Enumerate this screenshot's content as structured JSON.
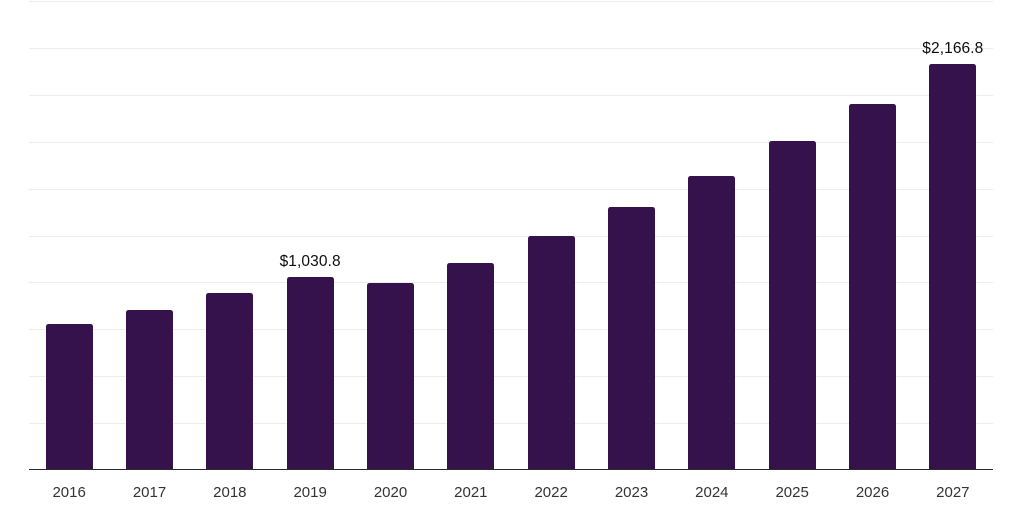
{
  "chart": {
    "background": "#ffffff",
    "bar_color": "#35124B",
    "gridline_color": "#eeecee",
    "axis_line_color": "#2b2b2b",
    "tick_label_color": "#333333",
    "value_label_color": "#0d0d0d"
  },
  "chart_data": {
    "type": "bar",
    "title": "",
    "xlabel": "",
    "ylabel": "",
    "categories": [
      "2016",
      "2017",
      "2018",
      "2019",
      "2020",
      "2021",
      "2022",
      "2023",
      "2024",
      "2025",
      "2026",
      "2027"
    ],
    "values": [
      779.8,
      854.6,
      941.5,
      1030.8,
      998.1,
      1104.9,
      1247.2,
      1403.4,
      1565.4,
      1753.6,
      1952.4,
      2166.8
    ],
    "data_labels": {
      "2019": "$1,030.8",
      "2027": "$2,166.8"
    },
    "ylim": [
      0,
      2500
    ],
    "gridline_step": 250,
    "grid": true,
    "legend": false,
    "y_axis_tick_labels_visible": false,
    "currency_prefix": "$"
  }
}
